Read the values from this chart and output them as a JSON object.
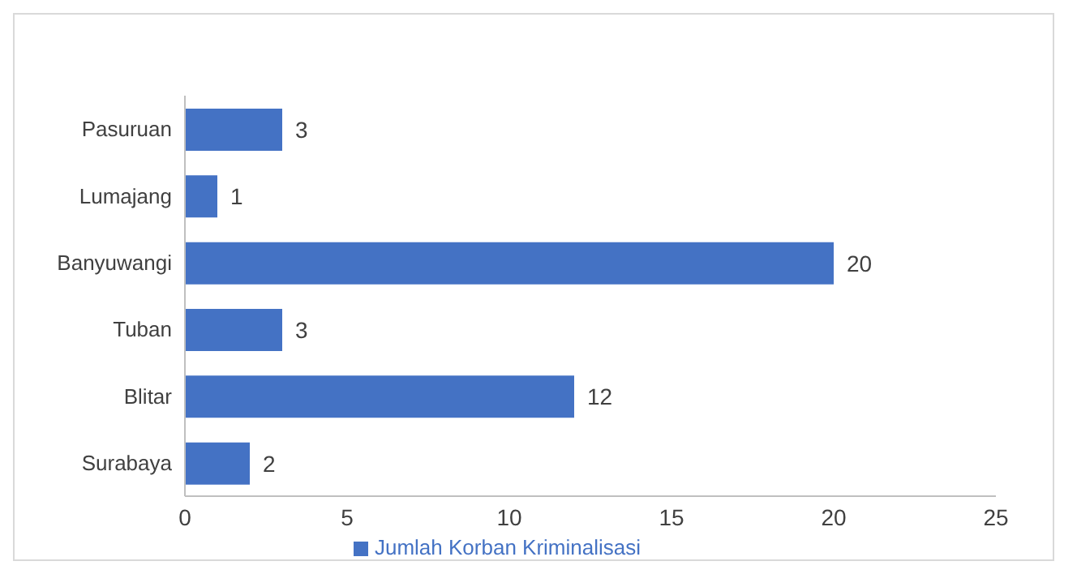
{
  "chart_data": {
    "type": "bar",
    "orientation": "horizontal",
    "categories": [
      "Pasuruan",
      "Lumajang",
      "Banyuwangi",
      "Tuban",
      "Blitar",
      "Surabaya"
    ],
    "series": [
      {
        "name": "Jumlah Korban Kriminalisasi",
        "color": "#4472c4",
        "values": [
          3,
          1,
          20,
          3,
          12,
          2
        ]
      }
    ],
    "xlim": [
      0,
      25
    ],
    "xticks": [
      0,
      5,
      10,
      15,
      20,
      25
    ],
    "data_labels": true,
    "legend": "bottom",
    "grid": false
  }
}
